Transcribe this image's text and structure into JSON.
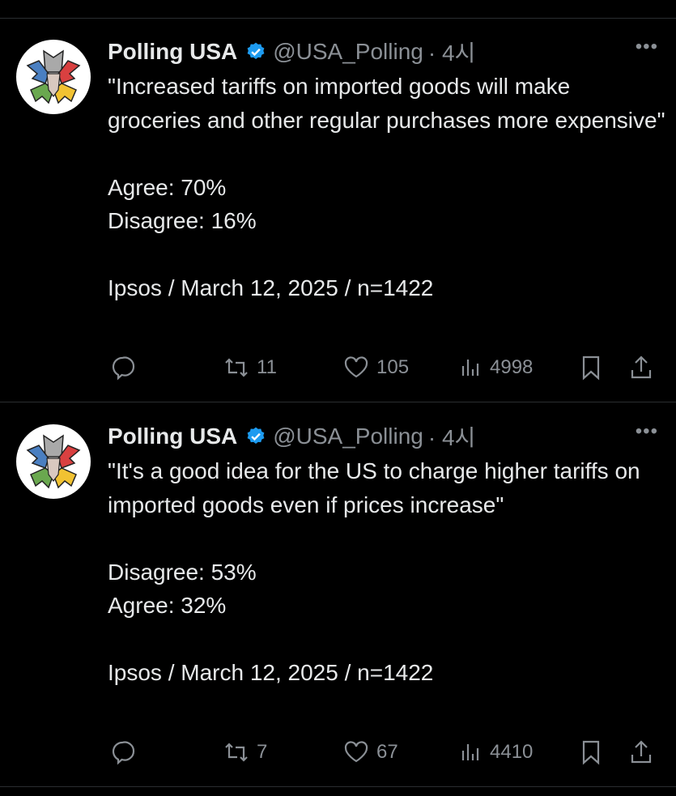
{
  "tweets": [
    {
      "name": "Polling USA",
      "handle": "@USA_Polling",
      "time": "· 4시",
      "text": "\"Increased tariffs on imported goods will make groceries and other regular purchases more expensive\"\n\nAgree: 70%\nDisagree: 16%\n\nIpsos / March 12, 2025 / n=1422",
      "retweets": "11",
      "likes": "105",
      "views": "4998"
    },
    {
      "name": "Polling USA",
      "handle": "@USA_Polling",
      "time": "· 4시",
      "text": "\"It's a good idea for the US to charge higher tariffs on imported goods even if prices increase\"\n\nDisagree: 53%\nAgree: 32%\n\nIpsos / March 12, 2025 / n=1422",
      "retweets": "7",
      "likes": "67",
      "views": "4410"
    }
  ],
  "more_label": "•••",
  "colors": {
    "background": "#000000",
    "verified": "#1d9bf0",
    "muted": "#8b9096"
  }
}
